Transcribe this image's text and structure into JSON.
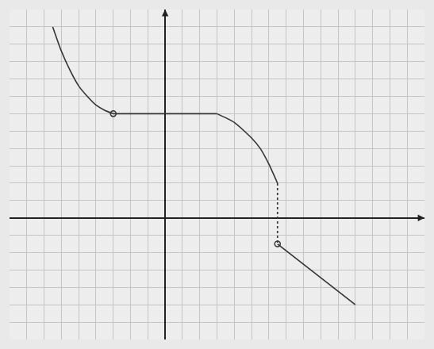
{
  "chart_data": {
    "type": "line",
    "xlim": [
      -9,
      15
    ],
    "ylim": [
      -7,
      12
    ],
    "xticks": [
      -9,
      -8,
      -7,
      -6,
      -5,
      -4,
      -3,
      -2,
      -1,
      0,
      1,
      2,
      3,
      4,
      5,
      6,
      7,
      8,
      9,
      10,
      11,
      12,
      13,
      14,
      15
    ],
    "yticks": [
      -7,
      -6,
      -5,
      -4,
      -3,
      -2,
      -1,
      0,
      1,
      2,
      3,
      4,
      5,
      6,
      7,
      8,
      9,
      10,
      11,
      12
    ],
    "grid": true,
    "tick_labels": false,
    "series": [
      {
        "type": "line",
        "color": "#333333",
        "line_style": "solid",
        "x": [
          -6.5,
          -6,
          -5.5,
          -5,
          -4.5,
          -4,
          -3.5,
          -3
        ],
        "values": [
          11,
          9.6,
          8.5,
          7.6,
          7,
          6.5,
          6.2,
          6
        ]
      },
      {
        "type": "line",
        "color": "#333333",
        "line_style": "solid",
        "x": [
          -3,
          3
        ],
        "values": [
          6,
          6
        ]
      },
      {
        "type": "line",
        "color": "#333333",
        "line_style": "solid",
        "x": [
          3,
          4,
          5,
          5.5,
          6,
          6.5
        ],
        "values": [
          6,
          5.5,
          4.6,
          4,
          3.1,
          2
        ]
      },
      {
        "type": "line",
        "color": "#333333",
        "line_style": "dotted",
        "x": [
          6.5,
          6.5
        ],
        "values": [
          2,
          -1.5
        ]
      },
      {
        "type": "line",
        "color": "#333333",
        "line_style": "solid",
        "x": [
          6.5,
          11
        ],
        "values": [
          -1.5,
          -5
        ]
      },
      {
        "type": "scatter",
        "color": "#333333",
        "marker": "open circle",
        "x": [
          -3,
          6.5
        ],
        "values": [
          6,
          -1.5
        ]
      }
    ]
  }
}
